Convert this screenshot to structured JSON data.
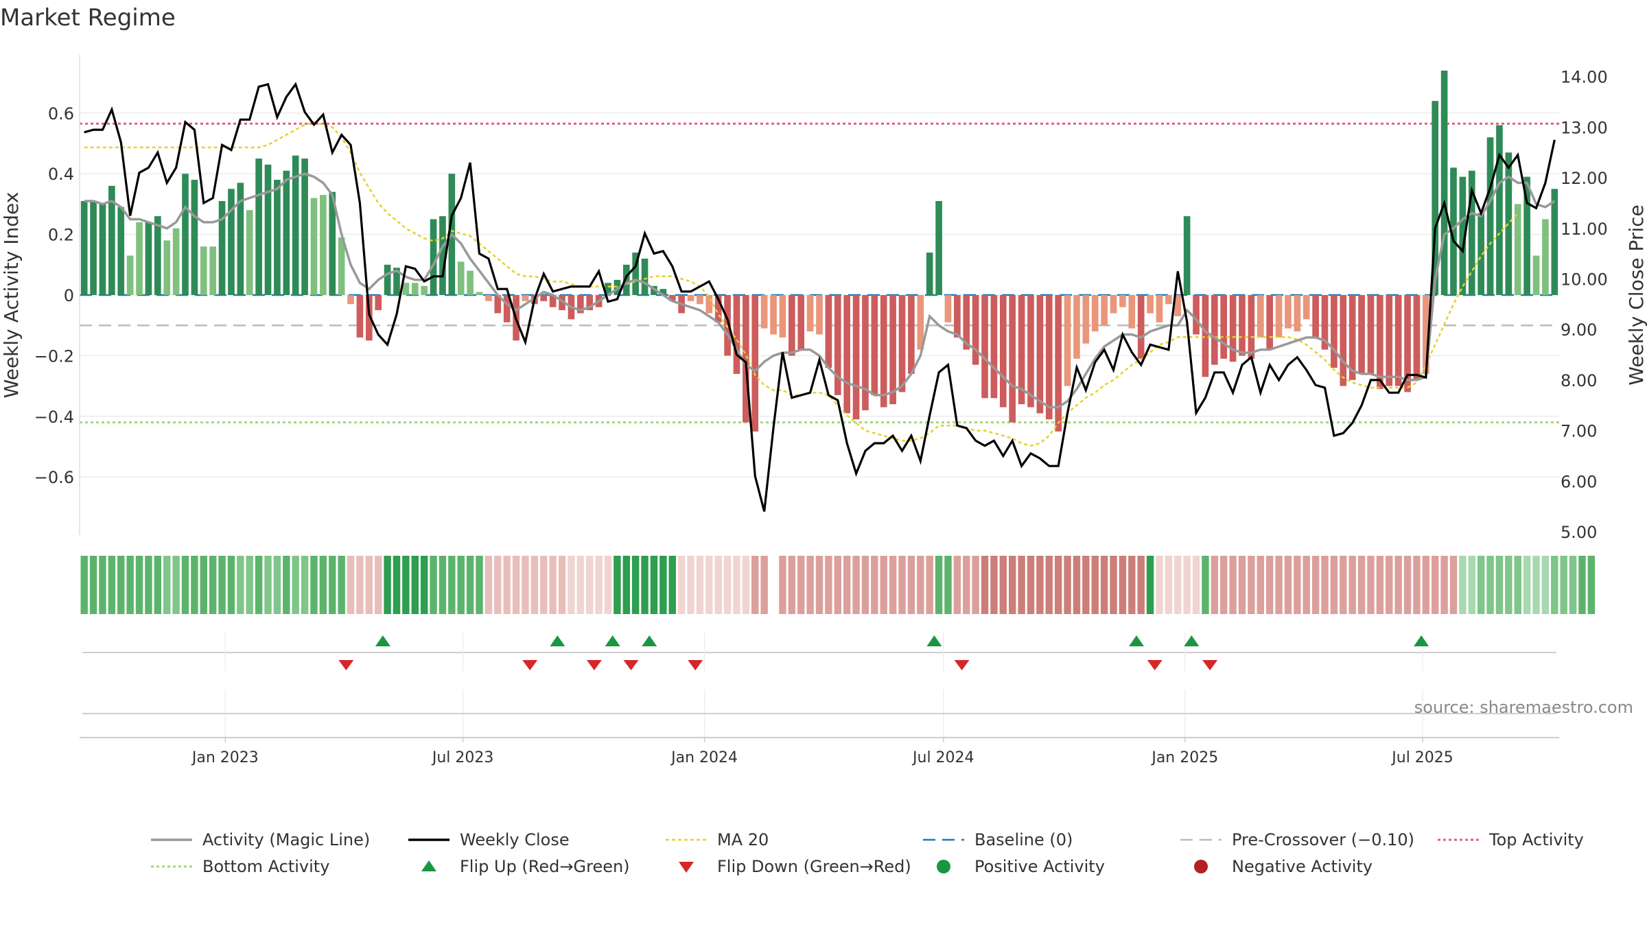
{
  "title": "Market Regime",
  "source": "source: sharemaestro.com",
  "colors": {
    "green_strong": "#2e8b57",
    "green_light": "#7fc07f",
    "red_strong": "#cd5c5c",
    "red_light": "#e9967a",
    "close": "#000000",
    "magic": "#999999",
    "ma20": "#e6d22a",
    "baseline": "#1f77b4",
    "precross": "#bbbbbb",
    "top": "#e0607e",
    "bottom": "#a3d977",
    "flip_up": "#1a9641",
    "flip_down": "#d62728"
  },
  "chart_data": {
    "type": "bar+line",
    "title": "Market Regime",
    "ylabel_left": "Weekly Activity Index",
    "ylabel_right": "Weekly Close Price",
    "left_ticks": [
      0.6,
      0.4,
      0.2,
      0,
      -0.2,
      -0.4,
      -0.6
    ],
    "left_tick_labels": [
      "0.6",
      "0.4",
      "0.2",
      "0",
      "−0.2",
      "−0.4",
      "−0.6"
    ],
    "left_range": [
      -0.79,
      0.79
    ],
    "right_ticks": [
      14,
      13,
      12,
      11,
      10,
      9,
      8,
      7,
      6,
      5
    ],
    "right_tick_labels": [
      "14.00",
      "13.00",
      "12.00",
      "11.00",
      "10.00",
      "9.00",
      "8.00",
      "7.00",
      "6.00",
      "5.00"
    ],
    "right_range": [
      4.77,
      14.55
    ],
    "x_start": "2022-09-12",
    "x_ticks": [
      {
        "label": "Jan 2023",
        "date": "2023-01-01"
      },
      {
        "label": "Jul 2023",
        "date": "2023-07-01"
      },
      {
        "label": "Jan 2024",
        "date": "2024-01-01"
      },
      {
        "label": "Jul 2024",
        "date": "2024-07-01"
      },
      {
        "label": "Jan 2025",
        "date": "2025-01-01"
      },
      {
        "label": "Jul 2025",
        "date": "2025-07-01"
      }
    ],
    "reference_lines": {
      "top_activity": 0.565,
      "bottom_activity": -0.42,
      "pre_crossover": -0.1,
      "baseline": 0
    },
    "activity": [
      0.31,
      0.31,
      0.3,
      0.36,
      0.29,
      0.13,
      0.24,
      0.24,
      0.26,
      0.18,
      0.22,
      0.4,
      0.38,
      0.16,
      0.16,
      0.31,
      0.35,
      0.37,
      0.28,
      0.45,
      0.43,
      0.38,
      0.41,
      0.46,
      0.45,
      0.32,
      0.33,
      0.34,
      0.19,
      -0.03,
      -0.14,
      -0.15,
      -0.05,
      0.1,
      0.09,
      0.04,
      0.04,
      0.03,
      0.25,
      0.26,
      0.4,
      0.11,
      0.08,
      0.01,
      -0.02,
      -0.06,
      -0.09,
      -0.15,
      -0.02,
      -0.03,
      -0.02,
      -0.04,
      -0.05,
      -0.08,
      -0.06,
      -0.05,
      -0.04,
      0.04,
      0.05,
      0.1,
      0.14,
      0.12,
      0.03,
      0.02,
      -0.02,
      -0.06,
      -0.02,
      -0.03,
      -0.06,
      -0.09,
      -0.2,
      -0.26,
      -0.42,
      -0.45,
      -0.11,
      -0.13,
      -0.14,
      -0.2,
      -0.18,
      -0.12,
      -0.13,
      -0.24,
      -0.33,
      -0.39,
      -0.41,
      -0.38,
      -0.33,
      -0.37,
      -0.36,
      -0.32,
      -0.26,
      -0.18,
      0.14,
      0.31,
      -0.09,
      -0.14,
      -0.18,
      -0.23,
      -0.34,
      -0.34,
      -0.37,
      -0.42,
      -0.36,
      -0.37,
      -0.39,
      -0.41,
      -0.45,
      -0.3,
      -0.21,
      -0.16,
      -0.12,
      -0.1,
      -0.06,
      -0.04,
      -0.11,
      -0.21,
      -0.06,
      -0.09,
      -0.03,
      -0.07,
      0.26,
      -0.13,
      -0.27,
      -0.23,
      -0.21,
      -0.22,
      -0.2,
      -0.21,
      -0.14,
      -0.18,
      -0.14,
      -0.11,
      -0.12,
      -0.08,
      -0.14,
      -0.18,
      -0.24,
      -0.3,
      -0.28,
      -0.26,
      -0.26,
      -0.31,
      -0.3,
      -0.3,
      -0.32,
      -0.28,
      -0.26,
      0.64,
      0.74,
      0.42,
      0.39,
      0.41,
      0.27,
      0.52,
      0.56,
      0.47,
      0.3,
      0.39,
      0.13,
      0.25,
      0.35
    ],
    "magic_line": [
      0.31,
      0.31,
      0.3,
      0.31,
      0.29,
      0.25,
      0.25,
      0.24,
      0.23,
      0.22,
      0.24,
      0.29,
      0.26,
      0.24,
      0.24,
      0.25,
      0.28,
      0.31,
      0.32,
      0.33,
      0.34,
      0.35,
      0.38,
      0.39,
      0.4,
      0.39,
      0.37,
      0.33,
      0.2,
      0.1,
      0.04,
      0.02,
      0.05,
      0.07,
      0.08,
      0.06,
      0.05,
      0.05,
      0.1,
      0.16,
      0.2,
      0.17,
      0.12,
      0.08,
      0.04,
      0.0,
      -0.03,
      -0.05,
      -0.03,
      -0.01,
      0.01,
      0.0,
      -0.02,
      -0.04,
      -0.05,
      -0.04,
      -0.02,
      0.0,
      0.02,
      0.04,
      0.05,
      0.04,
      0.02,
      0.0,
      -0.02,
      -0.03,
      -0.04,
      -0.05,
      -0.07,
      -0.09,
      -0.13,
      -0.18,
      -0.23,
      -0.25,
      -0.22,
      -0.2,
      -0.19,
      -0.19,
      -0.18,
      -0.18,
      -0.2,
      -0.24,
      -0.27,
      -0.29,
      -0.3,
      -0.31,
      -0.33,
      -0.33,
      -0.32,
      -0.3,
      -0.26,
      -0.2,
      -0.07,
      -0.1,
      -0.12,
      -0.13,
      -0.16,
      -0.18,
      -0.21,
      -0.24,
      -0.27,
      -0.3,
      -0.31,
      -0.33,
      -0.35,
      -0.37,
      -0.37,
      -0.35,
      -0.31,
      -0.26,
      -0.21,
      -0.17,
      -0.15,
      -0.13,
      -0.13,
      -0.14,
      -0.12,
      -0.11,
      -0.1,
      -0.1,
      -0.05,
      -0.08,
      -0.12,
      -0.14,
      -0.16,
      -0.18,
      -0.19,
      -0.19,
      -0.18,
      -0.18,
      -0.17,
      -0.16,
      -0.15,
      -0.14,
      -0.14,
      -0.15,
      -0.18,
      -0.22,
      -0.25,
      -0.26,
      -0.26,
      -0.27,
      -0.27,
      -0.27,
      -0.28,
      -0.28,
      -0.27,
      0.05,
      0.2,
      0.22,
      0.25,
      0.27,
      0.26,
      0.31,
      0.37,
      0.39,
      0.37,
      0.37,
      0.3,
      0.29,
      0.31
    ],
    "close": [
      12.9,
      12.95,
      12.95,
      13.35,
      12.7,
      11.25,
      12.1,
      12.2,
      12.5,
      11.9,
      12.2,
      13.1,
      12.95,
      11.5,
      11.6,
      12.65,
      12.55,
      13.15,
      13.15,
      13.8,
      13.85,
      13.2,
      13.6,
      13.85,
      13.3,
      13.05,
      13.25,
      12.5,
      12.85,
      12.65,
      11.5,
      9.3,
      8.9,
      8.7,
      9.3,
      10.25,
      10.2,
      9.95,
      10.05,
      10.05,
      11.25,
      11.6,
      12.3,
      10.5,
      10.4,
      9.8,
      9.8,
      9.2,
      8.75,
      9.6,
      10.1,
      9.75,
      9.8,
      9.85,
      9.85,
      9.85,
      10.15,
      9.55,
      9.6,
      10.05,
      10.25,
      10.9,
      10.5,
      10.55,
      10.25,
      9.75,
      9.75,
      9.85,
      9.95,
      9.6,
      9.2,
      8.5,
      8.35,
      6.1,
      5.4,
      7.05,
      8.55,
      7.65,
      7.7,
      7.75,
      8.4,
      7.7,
      7.6,
      6.75,
      6.15,
      6.6,
      6.75,
      6.75,
      6.9,
      6.6,
      6.9,
      6.4,
      7.3,
      8.15,
      8.3,
      7.1,
      7.05,
      6.8,
      6.7,
      6.8,
      6.5,
      6.8,
      6.3,
      6.55,
      6.45,
      6.3,
      6.3,
      7.35,
      8.25,
      7.8,
      8.35,
      8.6,
      8.2,
      8.9,
      8.55,
      8.3,
      8.7,
      8.65,
      8.6,
      10.15,
      9.15,
      7.35,
      7.65,
      8.15,
      8.15,
      7.75,
      8.3,
      8.45,
      7.75,
      8.3,
      8.0,
      8.3,
      8.45,
      8.2,
      7.9,
      7.85,
      6.9,
      6.95,
      7.15,
      7.5,
      8.0,
      8.0,
      7.75,
      7.75,
      8.1,
      8.1,
      8.05,
      11.0,
      11.5,
      10.75,
      10.55,
      11.75,
      11.3,
      11.8,
      12.45,
      12.2,
      12.45,
      11.5,
      11.4,
      11.9,
      12.75
    ],
    "ma20": [
      12.6,
      12.6,
      12.6,
      12.6,
      12.6,
      12.6,
      12.6,
      12.6,
      12.6,
      12.6,
      12.6,
      12.6,
      12.6,
      12.6,
      12.6,
      12.6,
      12.6,
      12.6,
      12.6,
      12.6,
      12.65,
      12.75,
      12.85,
      12.95,
      13.05,
      13.1,
      13.05,
      13.0,
      12.8,
      12.5,
      12.1,
      11.8,
      11.5,
      11.3,
      11.15,
      11.0,
      10.9,
      10.8,
      10.75,
      10.8,
      10.95,
      10.9,
      10.85,
      10.7,
      10.55,
      10.4,
      10.25,
      10.1,
      10.05,
      10.05,
      10.0,
      9.95,
      9.95,
      9.9,
      9.85,
      9.85,
      9.85,
      9.85,
      9.85,
      9.9,
      9.95,
      10.0,
      10.05,
      10.05,
      10.05,
      10.0,
      9.95,
      9.85,
      9.65,
      9.3,
      9.05,
      8.8,
      8.5,
      8.1,
      7.9,
      7.8,
      7.8,
      7.7,
      7.7,
      7.75,
      7.75,
      7.7,
      7.5,
      7.3,
      7.15,
      7.0,
      6.95,
      6.9,
      6.85,
      6.8,
      6.8,
      6.85,
      6.95,
      7.1,
      7.1,
      7.1,
      7.05,
      7.0,
      7.0,
      6.95,
      6.9,
      6.85,
      6.75,
      6.7,
      6.75,
      6.9,
      7.15,
      7.35,
      7.5,
      7.65,
      7.75,
      7.9,
      8.0,
      8.15,
      8.3,
      8.4,
      8.55,
      8.7,
      8.75,
      8.85,
      8.85,
      8.85,
      8.85,
      8.85,
      8.85,
      8.85,
      8.85,
      8.85,
      8.85,
      8.85,
      8.85,
      8.85,
      8.8,
      8.7,
      8.55,
      8.4,
      8.2,
      8.05,
      7.95,
      7.9,
      7.85,
      7.85,
      7.85,
      7.85,
      7.85,
      7.95,
      8.3,
      8.7,
      9.1,
      9.5,
      9.85,
      10.15,
      10.45,
      10.7,
      10.9,
      11.1,
      11.3
    ],
    "regime_strip": [
      3,
      3,
      3,
      3,
      3,
      3,
      3,
      3,
      3,
      2,
      2,
      3,
      3,
      3,
      3,
      3,
      3,
      2,
      2,
      3,
      2,
      2,
      3,
      2,
      2,
      3,
      3,
      3,
      3,
      -3,
      -3,
      -3,
      -3,
      4,
      4,
      4,
      4,
      4,
      3,
      3,
      3,
      3,
      3,
      3,
      -3,
      -3,
      -3,
      -3,
      -3,
      -3,
      -3,
      -3,
      -3,
      -4,
      -4,
      -4,
      -4,
      -4,
      4,
      4,
      4,
      4,
      4,
      4,
      4,
      -4,
      -4,
      -4,
      -4,
      -4,
      -4,
      -4,
      -4,
      -2,
      -2,
      0,
      -2,
      -2,
      -2,
      -2,
      -2,
      -2,
      -2,
      -2,
      -2,
      -2,
      -2,
      -2,
      -2,
      -2,
      -2,
      -2,
      -2,
      3,
      3,
      -2,
      -2,
      -2,
      -1,
      -1,
      -1,
      -1,
      -1,
      -1,
      -1,
      -1,
      -1,
      -1,
      -1,
      -1,
      -1,
      -1,
      -1,
      -1,
      -1,
      -1,
      4,
      -4,
      -4,
      -4,
      -4,
      -4,
      3,
      -2,
      -2,
      -2,
      -2,
      -2,
      -2,
      -2,
      -2,
      -2,
      -2,
      -2,
      -2,
      -2,
      -2,
      -2,
      -2,
      -2,
      -2,
      -2,
      -2,
      -2,
      -2,
      -2,
      -2,
      -2,
      -2,
      -2,
      1,
      1,
      2,
      2,
      2,
      2,
      2,
      1,
      1,
      1,
      2,
      2,
      2,
      3,
      3
    ],
    "flip_up": [
      "2023-05-01",
      "2023-09-11",
      "2023-10-23",
      "2023-11-20",
      "2024-06-24",
      "2024-11-25",
      "2025-01-06",
      "2025-06-30"
    ],
    "flip_down": [
      "2023-04-03",
      "2023-08-21",
      "2023-10-09",
      "2023-11-06",
      "2023-12-25",
      "2024-07-15",
      "2024-12-09",
      "2025-01-20"
    ],
    "legend": [
      {
        "key": "magic",
        "label": "Activity (Magic Line)"
      },
      {
        "key": "close",
        "label": "Weekly Close"
      },
      {
        "key": "ma20",
        "label": "MA 20"
      },
      {
        "key": "baseline",
        "label": "Baseline (0)"
      },
      {
        "key": "precross",
        "label": "Pre-Crossover (−0.10)"
      },
      {
        "key": "top",
        "label": "Top Activity"
      },
      {
        "key": "bottom",
        "label": "Bottom Activity"
      },
      {
        "key": "flip_up",
        "label": "Flip Up (Red→Green)"
      },
      {
        "key": "flip_down",
        "label": "Flip Down (Green→Red)"
      },
      {
        "key": "pos",
        "label": "Positive Activity"
      },
      {
        "key": "neg",
        "label": "Negative Activity"
      }
    ]
  }
}
